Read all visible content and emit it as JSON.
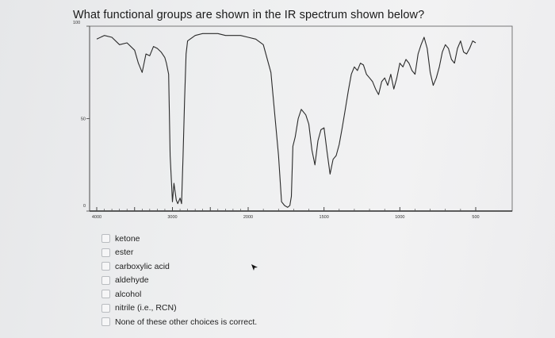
{
  "question": {
    "text": "What functional groups are shown in the IR spectrum shown below?"
  },
  "chart_data": {
    "type": "line",
    "title": "",
    "xlabel": "",
    "ylabel": "",
    "x_tick_labels": [
      "4000",
      "3000",
      "2000",
      "1500",
      "1000",
      "500"
    ],
    "y_tick_labels": [
      "100",
      "50",
      "0"
    ],
    "xlim": [
      4000,
      500
    ],
    "ylim": [
      0,
      100
    ],
    "grid": false,
    "series": [
      {
        "x": [
          4000,
          3900,
          3800,
          3700,
          3600,
          3500,
          3450,
          3400,
          3350,
          3300,
          3250,
          3200,
          3150,
          3100,
          3080,
          3050,
          3030,
          3000,
          2980,
          2950,
          2930,
          2900,
          2880,
          2860,
          2840,
          2820,
          2800,
          2700,
          2600,
          2500,
          2400,
          2300,
          2200,
          2100,
          2000,
          1950,
          1900,
          1850,
          1800,
          1780,
          1760,
          1740,
          1725,
          1715,
          1705,
          1690,
          1670,
          1650,
          1620,
          1600,
          1580,
          1560,
          1540,
          1520,
          1500,
          1480,
          1460,
          1440,
          1420,
          1400,
          1380,
          1360,
          1340,
          1320,
          1300,
          1280,
          1260,
          1240,
          1220,
          1200,
          1180,
          1160,
          1140,
          1120,
          1100,
          1080,
          1060,
          1040,
          1020,
          1000,
          980,
          960,
          940,
          920,
          900,
          880,
          860,
          840,
          820,
          800,
          780,
          760,
          740,
          720,
          700,
          680,
          660,
          640,
          620,
          600,
          580,
          560,
          540,
          520,
          500
        ],
        "y": [
          93,
          95,
          94,
          90,
          91,
          87,
          80,
          75,
          85,
          84,
          89,
          88,
          86,
          83,
          80,
          74,
          30,
          5,
          15,
          6,
          4,
          7,
          4,
          30,
          60,
          85,
          92,
          95,
          96,
          96,
          96,
          95,
          95,
          95,
          94,
          93,
          90,
          75,
          30,
          5,
          3,
          2,
          3,
          8,
          35,
          40,
          50,
          55,
          52,
          47,
          33,
          25,
          38,
          44,
          45,
          32,
          20,
          28,
          30,
          36,
          45,
          55,
          65,
          74,
          78,
          76,
          80,
          79,
          74,
          72,
          70,
          66,
          63,
          70,
          72,
          68,
          74,
          66,
          72,
          80,
          78,
          82,
          80,
          76,
          74,
          85,
          90,
          94,
          88,
          75,
          68,
          72,
          78,
          86,
          90,
          88,
          82,
          80,
          88,
          92,
          86,
          85,
          88,
          92,
          91
        ]
      }
    ]
  },
  "options": [
    {
      "label": "ketone"
    },
    {
      "label": "ester"
    },
    {
      "label": "carboxylic acid"
    },
    {
      "label": "aldehyde"
    },
    {
      "label": "alcohol"
    },
    {
      "label": "nitrile (i.e., RCN)"
    },
    {
      "label": "None of these other choices is correct."
    }
  ]
}
